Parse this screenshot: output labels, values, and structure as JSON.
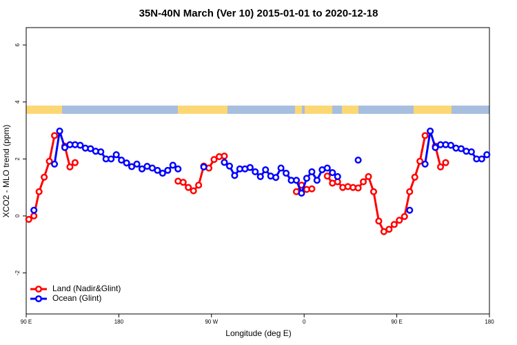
{
  "chart_data": {
    "type": "line",
    "title": "35N-40N March (Ver 10)   2015-01-01 to 2020-12-18",
    "x_label": "Longitude (deg E)",
    "y_label": "XCO2 - MLO trend (ppm)",
    "x": [
      92.5,
      97.5,
      102.5,
      107.5,
      112.5,
      117.5,
      122.5,
      127.5,
      132.5,
      137.5,
      142.5,
      147.5,
      152.5,
      157.5,
      162.5,
      167.5,
      172.5,
      177.5,
      182.5,
      187.5,
      192.5,
      197.5,
      202.5,
      207.5,
      212.5,
      217.5,
      222.5,
      227.5,
      232.5,
      237.5,
      242.5,
      247.5,
      252.5,
      257.5,
      262.5,
      267.5,
      272.5,
      277.5,
      282.5,
      287.5,
      292.5,
      297.5,
      302.5,
      307.5,
      312.5,
      317.5,
      322.5,
      327.5,
      332.5,
      337.5,
      342.5,
      347.5,
      352.5,
      357.5,
      362.5,
      367.5,
      372.5,
      377.5,
      382.5,
      387.5,
      392.5,
      397.5,
      402.5,
      407.5,
      412.5,
      417.5,
      422.5,
      427.5,
      432.5,
      437.5,
      442.5,
      447.5,
      452.5,
      457.5,
      462.5,
      467.5,
      472.5,
      477.5,
      482.5,
      487.5,
      492.5,
      497.5,
      502.5,
      507.5,
      512.5,
      517.5,
      522.5,
      527.5,
      532.5,
      537.5
    ],
    "series": [
      {
        "name": "Land (Nadir&Glint)",
        "color": "#ff0000",
        "values": [
          -0.12,
          0.0,
          0.85,
          1.36,
          1.92,
          2.82,
          null,
          2.45,
          1.72,
          1.87,
          null,
          null,
          null,
          null,
          null,
          null,
          null,
          null,
          null,
          null,
          null,
          null,
          null,
          null,
          null,
          null,
          null,
          null,
          null,
          1.22,
          1.18,
          1.0,
          0.88,
          1.08,
          1.75,
          1.68,
          1.98,
          2.08,
          2.1,
          null,
          null,
          null,
          null,
          null,
          null,
          null,
          null,
          null,
          null,
          null,
          null,
          null,
          0.85,
          1.08,
          0.93,
          0.95,
          null,
          null,
          1.4,
          1.15,
          1.2,
          1.0,
          1.03,
          1.0,
          0.98,
          1.2,
          1.38,
          0.85,
          -0.18,
          -0.55,
          -0.47,
          -0.3,
          -0.15,
          -0.02,
          0.85,
          1.36,
          1.92,
          2.82,
          null,
          2.45,
          1.72,
          1.87,
          null,
          null,
          null,
          null,
          null,
          null,
          null,
          null
        ]
      },
      {
        "name": "Ocean (Glint)",
        "color": "#0000ff",
        "values": [
          null,
          0.2,
          null,
          null,
          null,
          1.82,
          2.98,
          2.4,
          2.5,
          2.5,
          2.48,
          2.38,
          2.36,
          2.27,
          2.25,
          2.0,
          2.0,
          2.15,
          1.96,
          1.86,
          1.73,
          1.82,
          1.65,
          1.74,
          1.68,
          1.6,
          1.5,
          1.6,
          1.78,
          1.65,
          null,
          null,
          null,
          null,
          1.72,
          null,
          null,
          null,
          1.88,
          1.75,
          1.42,
          1.65,
          1.65,
          1.7,
          1.55,
          1.38,
          1.62,
          1.4,
          1.35,
          1.68,
          1.5,
          1.25,
          1.25,
          0.8,
          1.32,
          1.55,
          1.25,
          1.62,
          1.68,
          1.52,
          1.38,
          null,
          null,
          null,
          1.96,
          null,
          null,
          null,
          null,
          null,
          null,
          null,
          null,
          null,
          0.2,
          null,
          null,
          1.82,
          2.98,
          2.4,
          2.5,
          2.5,
          2.48,
          2.38,
          2.36,
          2.27,
          2.25,
          2.0,
          2.0,
          2.15
        ]
      }
    ],
    "xlim": [
      90,
      540
    ],
    "xticks": [
      {
        "value": 90,
        "label": "90 E"
      },
      180,
      {
        "value": 270,
        "label": "90 W"
      },
      {
        "value": 360,
        "label": "0"
      },
      {
        "value": 450,
        "label": "90 E"
      },
      {
        "value": 540,
        "label": "180"
      }
    ],
    "ylim": [
      -3.44,
      6.61
    ],
    "yticks": [
      -2,
      0,
      2,
      4,
      6
    ],
    "legend": "bottomleft"
  }
}
